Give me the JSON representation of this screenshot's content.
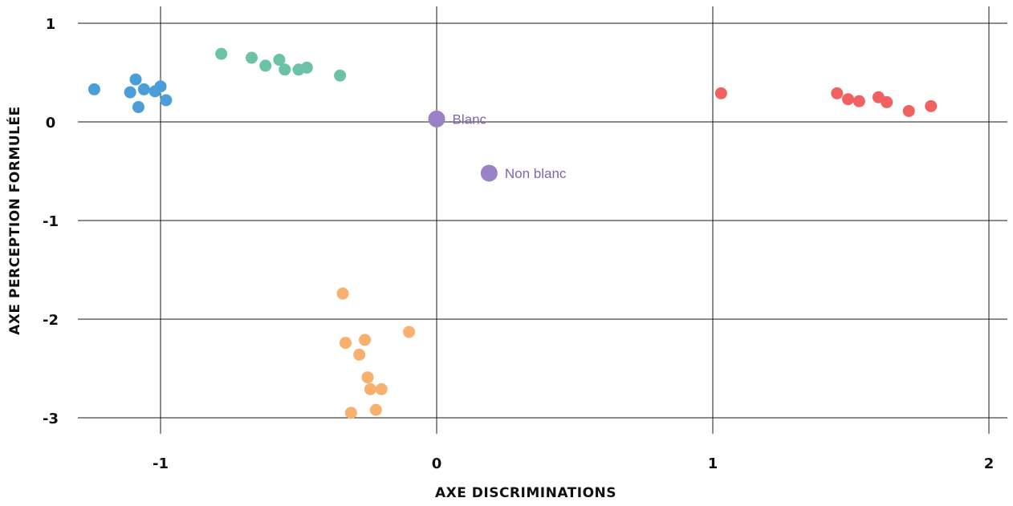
{
  "chart_data": {
    "type": "scatter",
    "title": "",
    "xlabel": "AXE DISCRIMINATIONS",
    "ylabel": "AXE PERCEPTION FORMULÉE",
    "xlim": [
      -1.3,
      2.05
    ],
    "ylim": [
      -3.05,
      1.05
    ],
    "x_ticks": [
      -1,
      0,
      1,
      2
    ],
    "y_ticks": [
      1,
      0,
      -1,
      -2,
      -3
    ],
    "x_tick_labels": [
      "-1",
      "0",
      "1",
      "2"
    ],
    "y_tick_labels": [
      "1",
      "0",
      "-1",
      "-2",
      "-3"
    ],
    "grid": true,
    "legend": "none",
    "series": [
      {
        "color": "#4a9fdb",
        "points": [
          {
            "x": -1.24,
            "y": 0.33
          },
          {
            "x": -1.09,
            "y": 0.43
          },
          {
            "x": -1.11,
            "y": 0.3
          },
          {
            "x": -1.06,
            "y": 0.33
          },
          {
            "x": -1.02,
            "y": 0.31
          },
          {
            "x": -1.0,
            "y": 0.36
          },
          {
            "x": -0.98,
            "y": 0.22
          },
          {
            "x": -1.08,
            "y": 0.15
          }
        ]
      },
      {
        "color": "#6cc2a6",
        "points": [
          {
            "x": -0.78,
            "y": 0.69
          },
          {
            "x": -0.67,
            "y": 0.65
          },
          {
            "x": -0.62,
            "y": 0.57
          },
          {
            "x": -0.57,
            "y": 0.63
          },
          {
            "x": -0.55,
            "y": 0.53
          },
          {
            "x": -0.5,
            "y": 0.53
          },
          {
            "x": -0.47,
            "y": 0.55
          },
          {
            "x": -0.35,
            "y": 0.47
          }
        ]
      },
      {
        "color": "#f16161",
        "points": [
          {
            "x": 1.03,
            "y": 0.29
          },
          {
            "x": 1.45,
            "y": 0.29
          },
          {
            "x": 1.49,
            "y": 0.23
          },
          {
            "x": 1.53,
            "y": 0.21
          },
          {
            "x": 1.6,
            "y": 0.25
          },
          {
            "x": 1.63,
            "y": 0.2
          },
          {
            "x": 1.71,
            "y": 0.11
          },
          {
            "x": 1.79,
            "y": 0.16
          }
        ]
      },
      {
        "color": "#f7b06e",
        "points": [
          {
            "x": -0.34,
            "y": -1.74
          },
          {
            "x": -0.1,
            "y": -2.13
          },
          {
            "x": -0.33,
            "y": -2.24
          },
          {
            "x": -0.26,
            "y": -2.21
          },
          {
            "x": -0.28,
            "y": -2.36
          },
          {
            "x": -0.25,
            "y": -2.59
          },
          {
            "x": -0.24,
            "y": -2.71
          },
          {
            "x": -0.2,
            "y": -2.71
          },
          {
            "x": -0.22,
            "y": -2.92
          },
          {
            "x": -0.31,
            "y": -2.95
          }
        ]
      },
      {
        "color": "#9a82c7",
        "label_color": "#7d66ad",
        "size": "large",
        "points": [
          {
            "x": 0.0,
            "y": 0.03,
            "label": "Blanc"
          },
          {
            "x": 0.19,
            "y": -0.52,
            "label": "Non blanc"
          }
        ]
      }
    ]
  }
}
